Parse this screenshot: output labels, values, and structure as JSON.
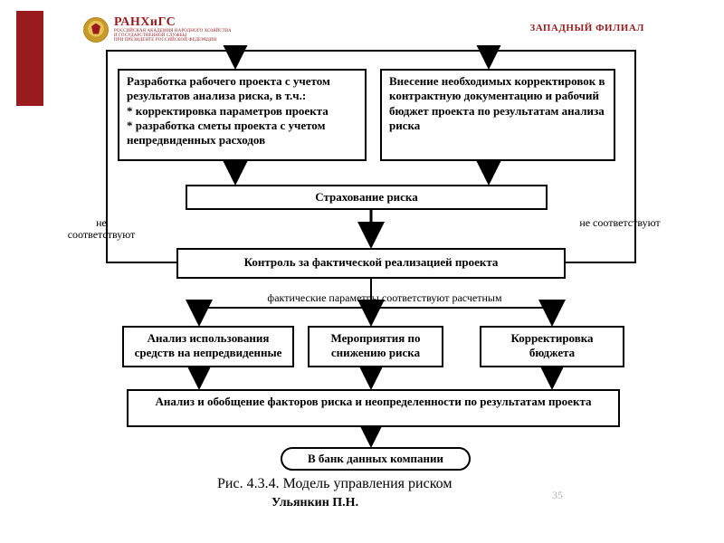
{
  "header": {
    "logo_main": "РАНХиГС",
    "logo_sub1": "РОССИЙСКАЯ АКАДЕМИЯ НАРОДНОГО ХОЗЯЙСТВА",
    "logo_sub2": "И ГОСУДАРСТВЕННОЙ СЛУЖБЫ",
    "logo_sub3": "ПРИ ПРЕЗИДЕНТЕ РОССИЙСКОЙ ФЕДЕРАЦИИ",
    "branch": "ЗАПАДНЫЙ ФИЛИАЛ",
    "brand_color": "#9a1b1e"
  },
  "flowchart": {
    "type": "flowchart",
    "background_color": "#ffffff",
    "border_color": "#000000",
    "line_width": 2,
    "font_family": "Times New Roman",
    "font_size": 13,
    "font_weight": "bold",
    "nodes": {
      "n1": "Разработка рабочего проекта с учетом результатов анализа риска, в т.ч.:\n* корректировка параметров проекта\n* разработка сметы проекта с учетом непредвиденных расходов",
      "n2": "Внесение необходимых корректировок в контрактную документацию и рабочий бюджет проекта по результатам анализа риска",
      "n3": "Страхование риска",
      "n4": "Контроль за фактической реализацией проекта",
      "n5": "Анализ использования средств на непредвиденные",
      "n6": "Мероприятия по снижению риска",
      "n7": "Корректировка бюджета",
      "n8": "Анализ и обобщение факторов риска и неопределенности по результатам проекта",
      "n9": "В банк данных компании"
    },
    "edge_labels": {
      "left_no": "не соответствуют",
      "right_no": "не соответствуют",
      "mid_yes": "фактические параметры соответствуют расчетным"
    },
    "caption": "Рис. 4.3.4. Модель управления риском",
    "author": "Ульянкин П.Н.",
    "page_number": "35"
  }
}
